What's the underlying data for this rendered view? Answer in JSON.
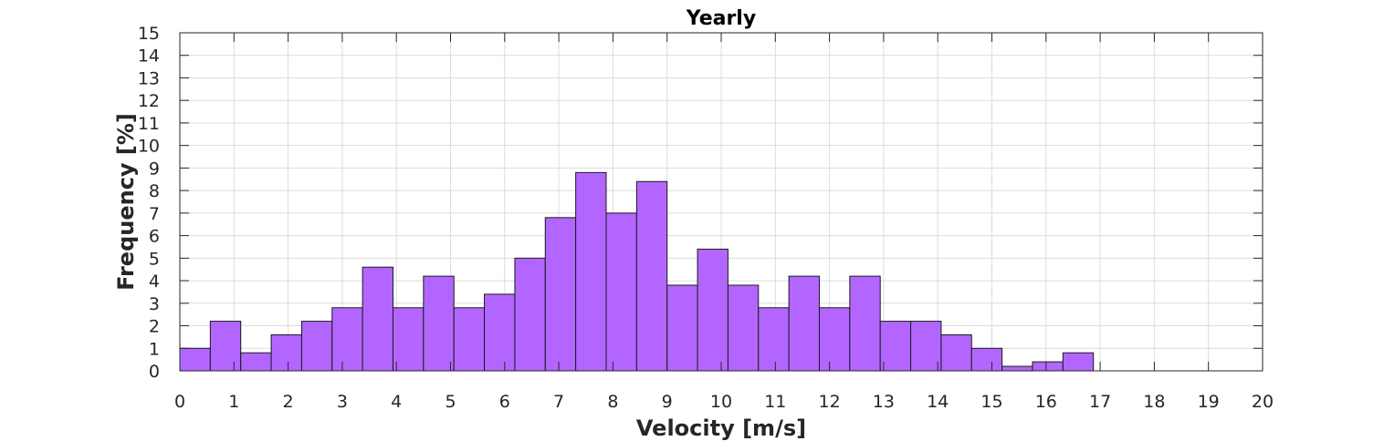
{
  "chart_data": {
    "type": "bar",
    "title": "Yearly",
    "xlabel": "Velocity [m/s]",
    "ylabel": "Frequency [%]",
    "xlim": [
      0,
      20
    ],
    "ylim": [
      0,
      15
    ],
    "xticks": [
      0,
      1,
      2,
      3,
      4,
      5,
      6,
      7,
      8,
      9,
      10,
      11,
      12,
      13,
      14,
      15,
      16,
      17,
      18,
      19,
      20
    ],
    "yticks": [
      0,
      1,
      2,
      3,
      4,
      5,
      6,
      7,
      8,
      9,
      10,
      11,
      12,
      13,
      14,
      15
    ],
    "grid": true,
    "bin_width": 0.5625,
    "bins_start": [
      0,
      0.5625,
      1.125,
      1.6875,
      2.25,
      2.8125,
      3.375,
      3.9375,
      4.5,
      5.0625,
      5.625,
      6.1875,
      6.75,
      7.3125,
      7.875,
      8.4375,
      9.0,
      9.5625,
      10.125,
      10.6875,
      11.25,
      11.8125,
      12.375,
      12.9375,
      13.5,
      14.0625,
      14.625,
      15.1875,
      15.75,
      16.3125
    ],
    "values": [
      1.0,
      2.2,
      0.8,
      1.6,
      2.2,
      2.8,
      4.6,
      2.8,
      4.2,
      2.8,
      3.4,
      5.0,
      6.8,
      8.8,
      7.0,
      8.4,
      3.8,
      5.4,
      3.8,
      2.8,
      4.2,
      2.8,
      4.2,
      2.2,
      2.2,
      1.6,
      1.0,
      0.2,
      0.4,
      0.8
    ],
    "bar_color": "#b266ff",
    "bar_edge_color": "#1a1a1a"
  }
}
